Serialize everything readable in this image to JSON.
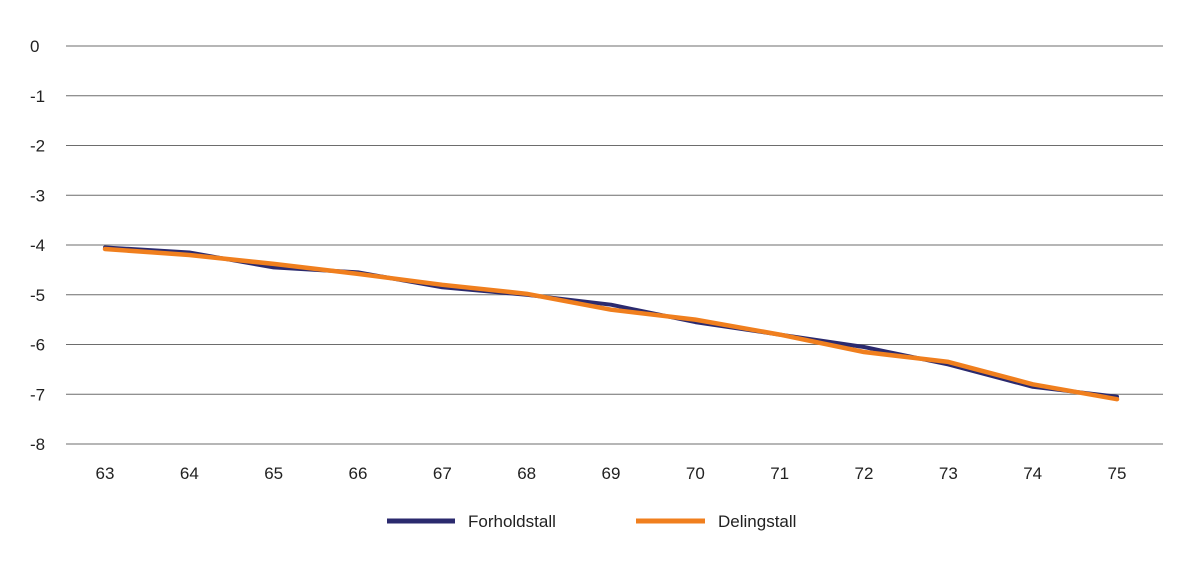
{
  "chart_data": {
    "type": "line",
    "title": "",
    "xlabel": "",
    "ylabel": "",
    "x": [
      63,
      64,
      65,
      66,
      67,
      68,
      69,
      70,
      71,
      72,
      73,
      74,
      75
    ],
    "ylim": [
      -8,
      0
    ],
    "yticks": [
      0,
      -1,
      -2,
      -3,
      -4,
      -5,
      -6,
      -7,
      -8
    ],
    "grid": "horizontal",
    "legend_position": "bottom-center",
    "series": [
      {
        "name": "Forholdstall",
        "color": "#2b2a6e",
        "values": [
          -4.05,
          -4.15,
          -4.45,
          -4.55,
          -4.85,
          -5.0,
          -5.2,
          -5.55,
          -5.8,
          -6.05,
          -6.4,
          -6.85,
          -7.05
        ]
      },
      {
        "name": "Delingstall",
        "color": "#f07f1e",
        "values": [
          -4.08,
          -4.2,
          -4.38,
          -4.58,
          -4.8,
          -4.98,
          -5.3,
          -5.5,
          -5.8,
          -6.15,
          -6.35,
          -6.8,
          -7.1
        ]
      }
    ]
  }
}
